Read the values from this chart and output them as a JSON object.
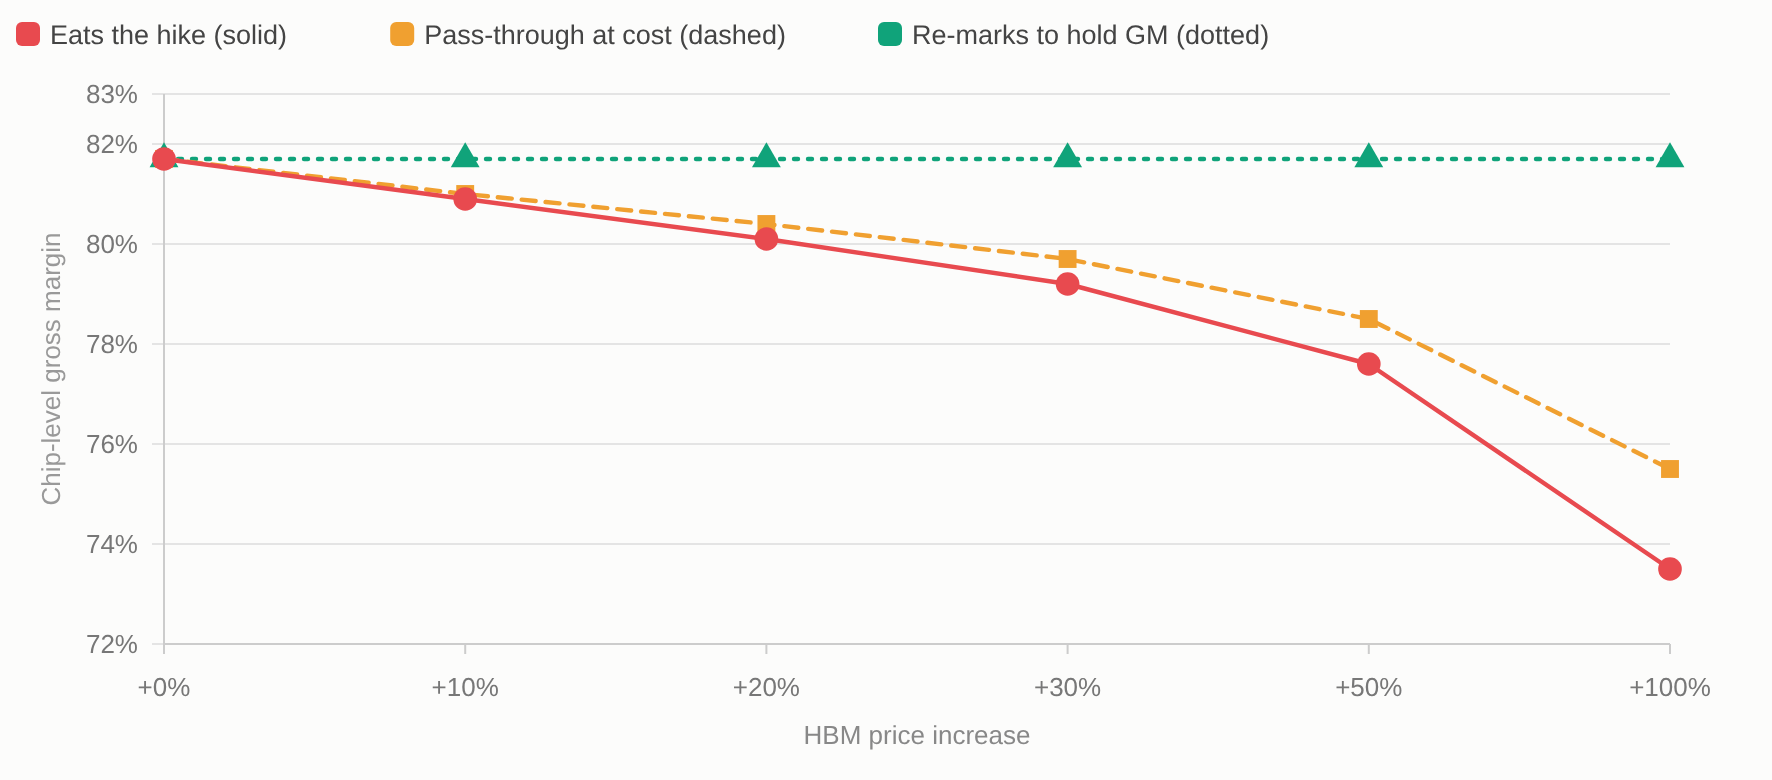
{
  "chart_data": {
    "type": "line",
    "xlabel": "HBM price increase",
    "ylabel": "Chip-level gross margin",
    "categories": [
      "+0%",
      "+10%",
      "+20%",
      "+30%",
      "+50%",
      "+100%"
    ],
    "series": [
      {
        "name": "Eats the hike (solid)",
        "color": "#e84a4f",
        "values": [
          81.7,
          80.9,
          80.1,
          79.2,
          77.6,
          73.5
        ],
        "marker": "circle",
        "line_style": "solid"
      },
      {
        "name": "Pass-through at cost (dashed)",
        "color": "#f0a030",
        "values": [
          81.7,
          81.0,
          80.4,
          79.7,
          78.5,
          75.5
        ],
        "marker": "square",
        "line_style": "dashed"
      },
      {
        "name": "Re-marks to hold GM (dotted)",
        "color": "#10a37a",
        "values": [
          81.7,
          81.7,
          81.7,
          81.7,
          81.7,
          81.7
        ],
        "marker": "triangle",
        "line_style": "dotted"
      }
    ],
    "ylim": [
      72,
      83
    ],
    "yticks": [
      {
        "value": 72,
        "label": "72%"
      },
      {
        "value": 74,
        "label": "74%"
      },
      {
        "value": 76,
        "label": "76%"
      },
      {
        "value": 78,
        "label": "78%"
      },
      {
        "value": 80,
        "label": "80%"
      },
      {
        "value": 82,
        "label": "82%"
      },
      {
        "value": 83,
        "label": "83%"
      }
    ],
    "grid": "y",
    "legend": "top left"
  }
}
